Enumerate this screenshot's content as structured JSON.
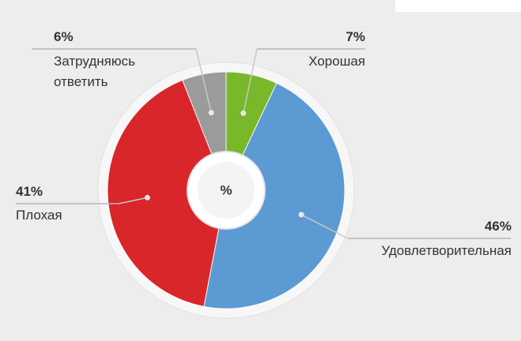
{
  "chart_data": {
    "type": "pie",
    "center_label": "%",
    "categories": [
      "Хорошая",
      "Удовлетворительная",
      "Плохая",
      "Затрудняюсь ответить"
    ],
    "values": [
      7,
      46,
      41,
      6
    ],
    "value_labels": [
      "7%",
      "46%",
      "41%",
      "6%"
    ],
    "colors": [
      "#78b82a",
      "#5b9ad2",
      "#d8262b",
      "#9b9b9b"
    ]
  }
}
